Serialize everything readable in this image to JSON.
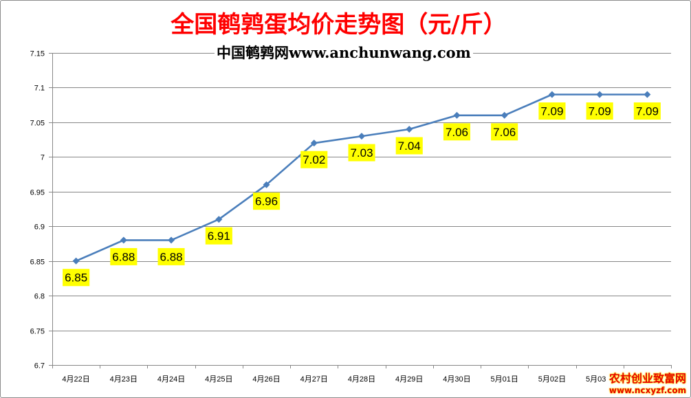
{
  "chart_data": {
    "type": "line",
    "title": "全国鹌鹑蛋均价走势图（元/斤）",
    "subtitle": "中国鹌鹑网www.anchunwang.com",
    "xlabel": "",
    "ylabel": "",
    "categories": [
      "4月22日",
      "4月23日",
      "4月24日",
      "4月25日",
      "4月26日",
      "4月27日",
      "4月28日",
      "4月29日",
      "4月30日",
      "5月01日",
      "5月02日",
      "5月03日",
      ""
    ],
    "series": [
      {
        "values": [
          6.85,
          6.88,
          6.88,
          6.91,
          6.96,
          7.02,
          7.03,
          7.04,
          7.06,
          7.06,
          7.09,
          7.09,
          7.09
        ]
      }
    ],
    "data_labels": true,
    "ylim": [
      6.7,
      7.15
    ],
    "yticks": [
      6.7,
      6.75,
      6.8,
      6.85,
      6.9,
      6.95,
      7,
      7.05,
      7.1,
      7.15
    ],
    "grid": true,
    "legend": "none",
    "marker": "diamond",
    "line_color": "#4A7EBB",
    "label_bg_color": "#FFFF00",
    "grid_color": "#868686",
    "axis_color": "#868686",
    "title_color": "#FF0000"
  },
  "watermark": {
    "line1": "农村创业致富网",
    "line2": "www.ncxyzf.com"
  }
}
